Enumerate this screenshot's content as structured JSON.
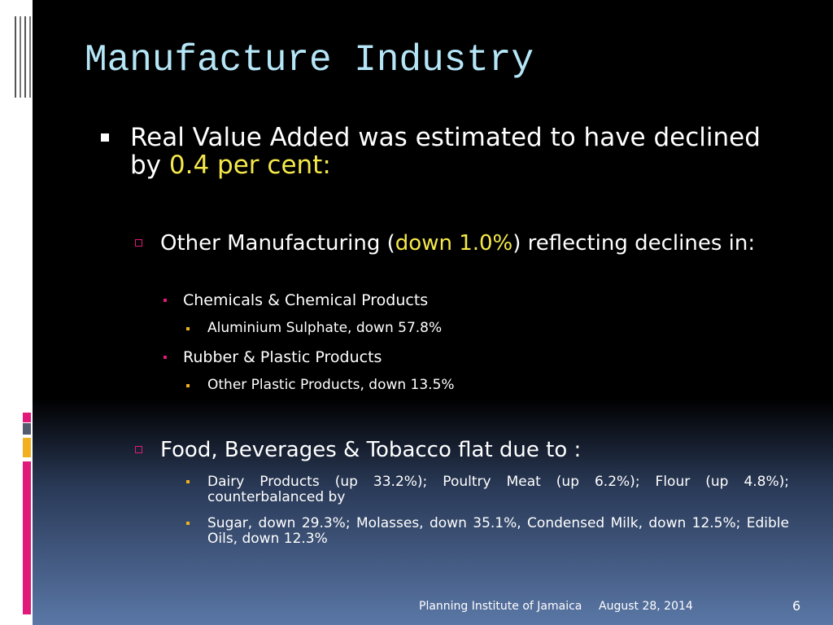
{
  "title": "Manufacture Industry",
  "bullet": {
    "text": "Real Value Added was estimated to have declined by ",
    "highlight": "0.4 per cent:",
    "groups": [
      {
        "text": "Other Manufacturing (",
        "highlight": "down 1.0%",
        "text_after": ") reflecting declines in:",
        "items": [
          {
            "text": "Chemicals & Chemical Products",
            "subitems": [
              "Aluminium Sulphate, down 57.8%"
            ]
          },
          {
            "text": "Rubber & Plastic Products",
            "subitems": [
              "Other Plastic Products, down 13.5%"
            ]
          }
        ]
      },
      {
        "text": "Food, Beverages & Tobacco flat due to :",
        "subitems": [
          "Dairy Products (up 33.2%); Poultry Meat (up 6.2%); Flour (up 4.8%); counterbalanced by",
          "Sugar, down 29.3%; Molasses, down 35.1%, Condensed Milk, down 12.5%; Edible Oils, down 12.3%"
        ]
      }
    ]
  },
  "footer": {
    "organization": "Planning Institute of Jamaica",
    "date": "August 28, 2014",
    "page": "6"
  }
}
